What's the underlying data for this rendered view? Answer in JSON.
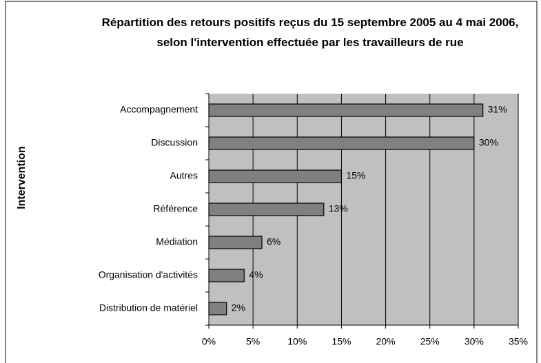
{
  "chart_data": {
    "type": "bar",
    "orientation": "horizontal",
    "title": "Répartition des retours positifs reçus du 15 septembre 2005 au 4 mai 2006, selon l'intervention effectuée par les travailleurs de rue",
    "y_label": "Intervention",
    "categories": [
      "Accompagnement",
      "Discussion",
      "Autres",
      "Référence",
      "Médiation",
      "Organisation d'activités",
      "Distribution de matériel"
    ],
    "values": [
      31,
      30,
      15,
      13,
      6,
      4,
      2
    ],
    "value_labels": [
      "31%",
      "30%",
      "15%",
      "13%",
      "6%",
      "4%",
      "2%"
    ],
    "color": "#808080",
    "xlim": [
      0,
      35
    ],
    "xticks": [
      {
        "value": 0,
        "label": "0%"
      },
      {
        "value": 5,
        "label": "5%"
      },
      {
        "value": 10,
        "label": "10%"
      },
      {
        "value": 15,
        "label": "15%"
      },
      {
        "value": 20,
        "label": "20%"
      },
      {
        "value": 25,
        "label": "25%"
      },
      {
        "value": 30,
        "label": "30%"
      },
      {
        "value": 35,
        "label": "35%"
      }
    ],
    "grid": true
  }
}
